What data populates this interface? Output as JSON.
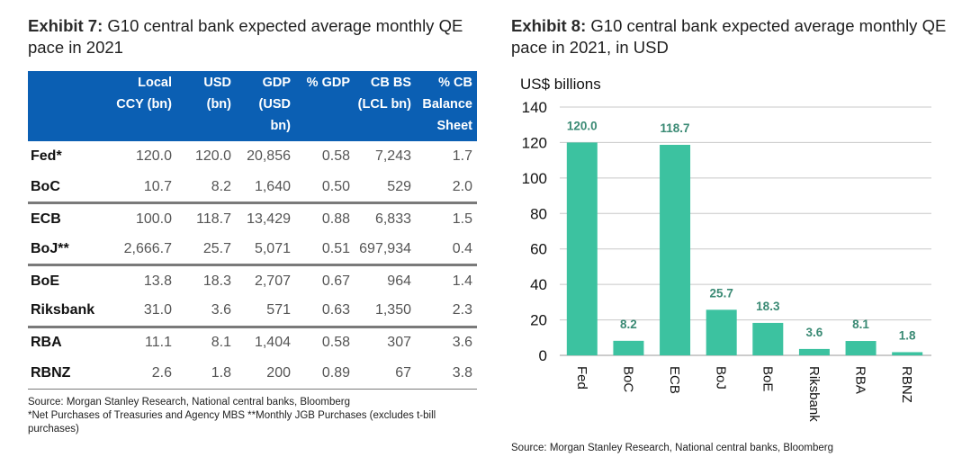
{
  "exhibit7": {
    "title_bold": "Exhibit 7:",
    "title_rest": " G10 central bank expected average monthly QE pace in 2021",
    "columns": [
      {
        "key": "bank",
        "label": ""
      },
      {
        "key": "local",
        "label": "Local CCY (bn)"
      },
      {
        "key": "usd",
        "label": "USD (bn)"
      },
      {
        "key": "gdp",
        "label": "GDP (USD bn)"
      },
      {
        "key": "pct_gdp",
        "label": "% GDP"
      },
      {
        "key": "cb_bs",
        "label": "CB BS (LCL bn)"
      },
      {
        "key": "pct_cb",
        "label": "% CB Balance Sheet"
      }
    ],
    "rows": [
      {
        "bank": "Fed*",
        "local": "120.0",
        "usd": "120.0",
        "gdp": "20,856",
        "pct_gdp": "0.58",
        "cb_bs": "7,243",
        "pct_cb": "1.7"
      },
      {
        "bank": "BoC",
        "local": "10.7",
        "usd": "8.2",
        "gdp": "1,640",
        "pct_gdp": "0.50",
        "cb_bs": "529",
        "pct_cb": "2.0"
      },
      {
        "bank": "ECB",
        "local": "100.0",
        "usd": "118.7",
        "gdp": "13,429",
        "pct_gdp": "0.88",
        "cb_bs": "6,833",
        "pct_cb": "1.5"
      },
      {
        "bank": "BoJ**",
        "local": "2,666.7",
        "usd": "25.7",
        "gdp": "5,071",
        "pct_gdp": "0.51",
        "cb_bs": "697,934",
        "pct_cb": "0.4"
      },
      {
        "bank": "BoE",
        "local": "13.8",
        "usd": "18.3",
        "gdp": "2,707",
        "pct_gdp": "0.67",
        "cb_bs": "964",
        "pct_cb": "1.4"
      },
      {
        "bank": "Riksbank",
        "local": "31.0",
        "usd": "3.6",
        "gdp": "571",
        "pct_gdp": "0.63",
        "cb_bs": "1,350",
        "pct_cb": "2.3"
      },
      {
        "bank": "RBA",
        "local": "11.1",
        "usd": "8.1",
        "gdp": "1,404",
        "pct_gdp": "0.58",
        "cb_bs": "307",
        "pct_cb": "3.6"
      },
      {
        "bank": "RBNZ",
        "local": "2.6",
        "usd": "1.8",
        "gdp": "200",
        "pct_gdp": "0.89",
        "cb_bs": "67",
        "pct_cb": "3.8"
      }
    ],
    "source": "Source: Morgan Stanley Research, National central banks, Bloomberg",
    "footnote": "*Net Purchases of Treasuries and Agency MBS **Monthly JGB Purchases (excludes t-bill purchases)",
    "header_color": "#0b5fb3"
  },
  "exhibit8": {
    "title_bold": "Exhibit 8:",
    "title_rest": " G10 central bank expected average monthly QE pace in 2021, in USD",
    "source": "Source: Morgan Stanley Research, National central banks, Bloomberg"
  },
  "chart_data": {
    "type": "bar",
    "title": "Exhibit 8: G10 central bank expected average monthly QE pace in 2021, in USD",
    "ylabel": "US$ billions",
    "xlabel": "",
    "categories": [
      "Fed",
      "BoC",
      "ECB",
      "BoJ",
      "BoE",
      "Riksbank",
      "RBA",
      "RBNZ"
    ],
    "values": [
      120.0,
      8.2,
      118.7,
      25.7,
      18.3,
      3.6,
      8.1,
      1.8
    ],
    "value_labels": [
      "120.0",
      "8.2",
      "118.7",
      "25.7",
      "18.3",
      "3.6",
      "8.1",
      "1.8"
    ],
    "ylim": [
      0,
      140
    ],
    "yticks": [
      0,
      20,
      40,
      60,
      80,
      100,
      120,
      140
    ],
    "grid": true,
    "legend": "none",
    "bar_color": "#3cc2a0",
    "label_color": "#3a8a74"
  }
}
